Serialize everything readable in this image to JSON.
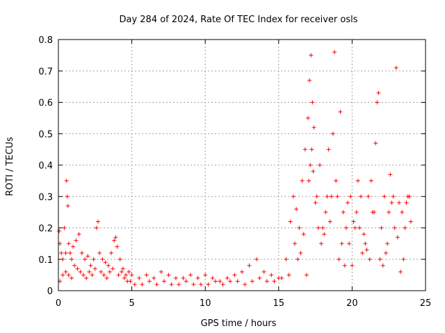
{
  "chart_data": {
    "type": "scatter",
    "title": "Day 284 of 2024, Rate Of TEC Index for receiver osls",
    "xlabel": "GPS time / hours",
    "ylabel": "ROTI / TECUs",
    "xlim": [
      0,
      25
    ],
    "ylim": [
      0,
      0.8
    ],
    "xticks": [
      "0",
      "5",
      "10",
      "15",
      "20",
      "25"
    ],
    "yticks": [
      "0",
      "0.1",
      "0.2",
      "0.3",
      "0.4",
      "0.5",
      "0.6",
      "0.7",
      "0.8"
    ],
    "grid": true,
    "marker": "+",
    "color": "#ff0000",
    "series": [
      {
        "name": "ROTI",
        "x": [
          0.05,
          0.1,
          0.2,
          0.3,
          0.4,
          0.5,
          0.55,
          0.6,
          0.65,
          0.7,
          0.8,
          0.9,
          1.0,
          1.2,
          1.4,
          1.6,
          1.8,
          2.0,
          2.2,
          2.4,
          2.6,
          2.7,
          2.8,
          3.0,
          3.2,
          3.4,
          3.6,
          3.8,
          3.9,
          4.0,
          4.2,
          4.4,
          4.6,
          4.8,
          5.0,
          5.5,
          6.0,
          6.5,
          7.0,
          7.5,
          8.0,
          8.5,
          9.0,
          9.5,
          10.0,
          10.5,
          11.0,
          11.5,
          12.0,
          12.5,
          13.0,
          13.5,
          14.0,
          14.5,
          15.0,
          15.5,
          15.8,
          16.0,
          16.2,
          16.4,
          16.6,
          16.8,
          17.0,
          17.1,
          17.2,
          17.3,
          17.4,
          17.6,
          17.8,
          18.0,
          18.2,
          18.4,
          18.6,
          18.7,
          18.8,
          19.0,
          19.2,
          19.4,
          19.6,
          19.8,
          20.0,
          20.2,
          20.4,
          20.6,
          20.8,
          21.0,
          21.2,
          21.4,
          21.6,
          21.7,
          21.8,
          22.0,
          22.2,
          22.4,
          22.6,
          22.8,
          22.9,
          23.0,
          23.2,
          23.4,
          23.6,
          23.8,
          24.0,
          0.1,
          0.3,
          0.5,
          0.7,
          0.9,
          1.1,
          1.3,
          1.5,
          1.7,
          1.9,
          2.1,
          2.3,
          2.5,
          2.9,
          3.1,
          3.3,
          3.5,
          3.7,
          4.1,
          4.3,
          4.5,
          4.7,
          4.9,
          5.2,
          5.7,
          6.2,
          6.7,
          7.2,
          7.7,
          8.2,
          8.7,
          9.2,
          9.7,
          10.2,
          10.7,
          11.2,
          11.7,
          12.2,
          12.7,
          13.2,
          13.7,
          14.2,
          14.7,
          15.2,
          15.7,
          16.1,
          16.3,
          16.5,
          16.7,
          16.9,
          17.05,
          17.15,
          17.25,
          17.35,
          17.5,
          17.7,
          17.9,
          18.1,
          18.3,
          18.5,
          18.9,
          19.1,
          19.3,
          19.5,
          19.7,
          19.9,
          20.1,
          20.3,
          20.5,
          20.7,
          20.9,
          21.1,
          21.3,
          21.5,
          21.9,
          22.1,
          22.3,
          22.5,
          22.7,
          23.1,
          23.3,
          23.5,
          23.7,
          23.9
        ],
        "y": [
          0.19,
          0.15,
          0.12,
          0.1,
          0.2,
          0.12,
          0.35,
          0.3,
          0.27,
          0.15,
          0.12,
          0.1,
          0.14,
          0.16,
          0.18,
          0.12,
          0.1,
          0.11,
          0.08,
          0.1,
          0.2,
          0.22,
          0.12,
          0.1,
          0.09,
          0.08,
          0.12,
          0.16,
          0.17,
          0.14,
          0.1,
          0.07,
          0.05,
          0.06,
          0.05,
          0.04,
          0.05,
          0.04,
          0.06,
          0.05,
          0.04,
          0.04,
          0.05,
          0.04,
          0.05,
          0.04,
          0.03,
          0.04,
          0.05,
          0.06,
          0.08,
          0.1,
          0.06,
          0.05,
          0.04,
          0.1,
          0.22,
          0.3,
          0.26,
          0.2,
          0.35,
          0.45,
          0.55,
          0.67,
          0.75,
          0.6,
          0.52,
          0.3,
          0.4,
          0.2,
          0.25,
          0.45,
          0.3,
          0.5,
          0.76,
          0.3,
          0.57,
          0.25,
          0.2,
          0.15,
          0.08,
          0.2,
          0.35,
          0.3,
          0.18,
          0.13,
          0.1,
          0.25,
          0.47,
          0.6,
          0.63,
          0.2,
          0.3,
          0.15,
          0.37,
          0.3,
          0.2,
          0.71,
          0.28,
          0.25,
          0.2,
          0.3,
          0.22,
          0.03,
          0.05,
          0.06,
          0.05,
          0.04,
          0.08,
          0.07,
          0.06,
          0.05,
          0.04,
          0.06,
          0.05,
          0.07,
          0.06,
          0.05,
          0.04,
          0.06,
          0.07,
          0.05,
          0.06,
          0.04,
          0.03,
          0.03,
          0.02,
          0.02,
          0.03,
          0.02,
          0.03,
          0.02,
          0.02,
          0.03,
          0.02,
          0.02,
          0.02,
          0.03,
          0.02,
          0.03,
          0.03,
          0.02,
          0.03,
          0.04,
          0.03,
          0.03,
          0.04,
          0.05,
          0.15,
          0.1,
          0.12,
          0.18,
          0.05,
          0.35,
          0.4,
          0.45,
          0.38,
          0.28,
          0.2,
          0.15,
          0.18,
          0.3,
          0.22,
          0.35,
          0.1,
          0.15,
          0.08,
          0.28,
          0.3,
          0.22,
          0.25,
          0.2,
          0.12,
          0.15,
          0.3,
          0.35,
          0.25,
          0.1,
          0.08,
          0.12,
          0.25,
          0.28,
          0.17,
          0.06,
          0.1,
          0.28,
          0.3
        ]
      }
    ]
  }
}
